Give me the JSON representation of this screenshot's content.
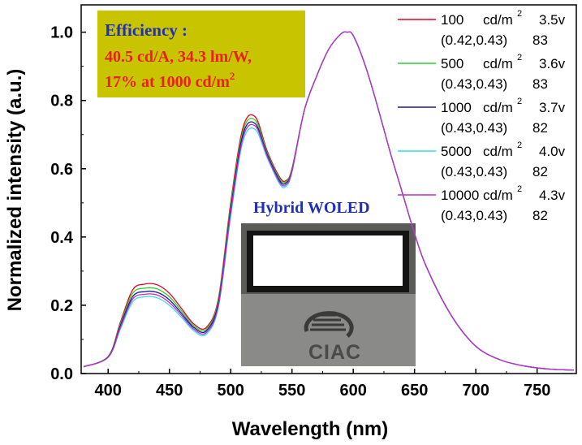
{
  "chart_data": {
    "type": "line",
    "xlabel": "Wavelength (nm)",
    "ylabel": "Normalized intensity (a.u.)",
    "xlim": [
      378,
      782
    ],
    "ylim": [
      0,
      1.08
    ],
    "xticks": [
      400,
      450,
      500,
      550,
      600,
      650,
      700,
      750
    ],
    "yticks": [
      "0.0",
      "0.2",
      "0.4",
      "0.6",
      "0.8",
      "1.0"
    ],
    "colors": {
      "s1": "#e8001c",
      "s2": "#2ecc2e",
      "s3": "#1a1a8c",
      "s4": "#33ddee",
      "s5": "#c02ad0"
    },
    "series": [
      {
        "name": "100 cd/m2 3.5v",
        "color_key": "s1",
        "legend_lum": "100",
        "legend_gap": "",
        "legend_unit": "cd/m",
        "legend_volt": "3.5v",
        "legend_cie": "(0.42,0.43)",
        "legend_cri": "83",
        "x": [
          380,
          400,
          410,
          420,
          430,
          440,
          450,
          460,
          470,
          480,
          490,
          500,
          510,
          520,
          530,
          540,
          545,
          550,
          560,
          570,
          580,
          590,
          595,
          600,
          610,
          620,
          630,
          640,
          650,
          660,
          680,
          700,
          720,
          740,
          760,
          780
        ],
        "y": [
          0.02,
          0.05,
          0.15,
          0.245,
          0.262,
          0.26,
          0.235,
          0.19,
          0.145,
          0.135,
          0.22,
          0.5,
          0.72,
          0.752,
          0.65,
          0.575,
          0.565,
          0.6,
          0.77,
          0.87,
          0.95,
          0.995,
          1.0,
          0.99,
          0.9,
          0.78,
          0.65,
          0.53,
          0.41,
          0.31,
          0.17,
          0.08,
          0.04,
          0.022,
          0.013,
          0.01
        ]
      },
      {
        "name": "500 cd/m2 3.6v",
        "color_key": "s2",
        "legend_lum": "500",
        "legend_gap": "",
        "legend_unit": "cd/m",
        "legend_volt": "3.6v",
        "legend_cie": "(0.43,0.43)",
        "legend_cri": "83",
        "x": [
          380,
          400,
          410,
          420,
          430,
          440,
          450,
          460,
          470,
          480,
          490,
          500,
          510,
          520,
          530,
          540,
          545,
          550,
          560,
          570,
          580,
          590,
          595,
          600,
          610,
          620,
          630,
          640,
          650,
          660,
          680,
          700,
          720,
          740,
          760,
          780
        ],
        "y": [
          0.02,
          0.05,
          0.145,
          0.235,
          0.25,
          0.248,
          0.225,
          0.183,
          0.14,
          0.13,
          0.215,
          0.49,
          0.71,
          0.742,
          0.645,
          0.57,
          0.562,
          0.598,
          0.77,
          0.87,
          0.95,
          0.995,
          1.0,
          0.99,
          0.9,
          0.78,
          0.65,
          0.53,
          0.41,
          0.31,
          0.17,
          0.08,
          0.04,
          0.022,
          0.013,
          0.01
        ]
      },
      {
        "name": "1000 cd/m2 3.7v",
        "color_key": "s3",
        "legend_lum": "1000",
        "legend_gap": "",
        "legend_unit": "cd/m",
        "legend_volt": "3.7v",
        "legend_cie": "(0.43,0.43)",
        "legend_cri": "82",
        "x": [
          380,
          400,
          410,
          420,
          430,
          440,
          450,
          460,
          470,
          480,
          490,
          500,
          510,
          520,
          530,
          540,
          545,
          550,
          560,
          570,
          580,
          590,
          595,
          600,
          610,
          620,
          630,
          640,
          650,
          660,
          680,
          700,
          720,
          740,
          760,
          780
        ],
        "y": [
          0.02,
          0.049,
          0.14,
          0.225,
          0.24,
          0.238,
          0.216,
          0.176,
          0.135,
          0.125,
          0.208,
          0.48,
          0.7,
          0.732,
          0.64,
          0.565,
          0.558,
          0.595,
          0.77,
          0.87,
          0.95,
          0.995,
          1.0,
          0.99,
          0.9,
          0.78,
          0.65,
          0.53,
          0.41,
          0.31,
          0.17,
          0.08,
          0.04,
          0.022,
          0.013,
          0.01
        ]
      },
      {
        "name": "5000 cd/m2 4.0v",
        "color_key": "s4",
        "legend_lum": "5000",
        "legend_gap": "",
        "legend_unit": "cd/m",
        "legend_volt": "4.0v",
        "legend_cie": "(0.43,0.43)",
        "legend_cri": "82",
        "x": [
          380,
          400,
          410,
          420,
          430,
          440,
          450,
          460,
          470,
          480,
          490,
          500,
          510,
          520,
          530,
          540,
          545,
          550,
          560,
          570,
          580,
          590,
          595,
          600,
          610,
          620,
          630,
          640,
          650,
          660,
          680,
          700,
          720,
          740,
          760,
          780
        ],
        "y": [
          0.02,
          0.047,
          0.13,
          0.21,
          0.225,
          0.222,
          0.2,
          0.164,
          0.125,
          0.115,
          0.195,
          0.46,
          0.68,
          0.715,
          0.63,
          0.555,
          0.548,
          0.59,
          0.77,
          0.87,
          0.95,
          0.995,
          1.0,
          0.99,
          0.9,
          0.78,
          0.65,
          0.53,
          0.41,
          0.31,
          0.17,
          0.08,
          0.04,
          0.022,
          0.013,
          0.01
        ]
      },
      {
        "name": "10000cd/m2 4.3v",
        "color_key": "s5",
        "legend_lum": "10000",
        "legend_gap": "",
        "legend_unit": "cd/m",
        "legend_volt": "4.3v",
        "legend_cie": "(0.43,0.43)",
        "legend_cri": "82",
        "x": [
          380,
          400,
          410,
          420,
          430,
          440,
          450,
          460,
          470,
          480,
          490,
          500,
          510,
          520,
          530,
          540,
          545,
          550,
          560,
          570,
          580,
          590,
          595,
          600,
          610,
          620,
          630,
          640,
          650,
          660,
          680,
          700,
          720,
          740,
          760,
          780
        ],
        "y": [
          0.02,
          0.048,
          0.135,
          0.218,
          0.232,
          0.23,
          0.208,
          0.17,
          0.13,
          0.12,
          0.2,
          0.47,
          0.69,
          0.725,
          0.635,
          0.56,
          0.553,
          0.592,
          0.77,
          0.87,
          0.95,
          0.995,
          1.0,
          0.99,
          0.9,
          0.78,
          0.65,
          0.53,
          0.41,
          0.31,
          0.17,
          0.08,
          0.04,
          0.022,
          0.013,
          0.01
        ]
      }
    ],
    "legend_sup": "2",
    "annotations": {
      "efficiency_head": "Efficiency :",
      "efficiency_line1": "40.5 cd/A, 34.3 lm/W,",
      "efficiency_line2": "17% at 1000 cd/m",
      "efficiency_sup": "2",
      "efficiency_box_color": "#c8c400",
      "hybrid_label": "Hybrid WOLED",
      "logo_text": "CIAC"
    }
  }
}
